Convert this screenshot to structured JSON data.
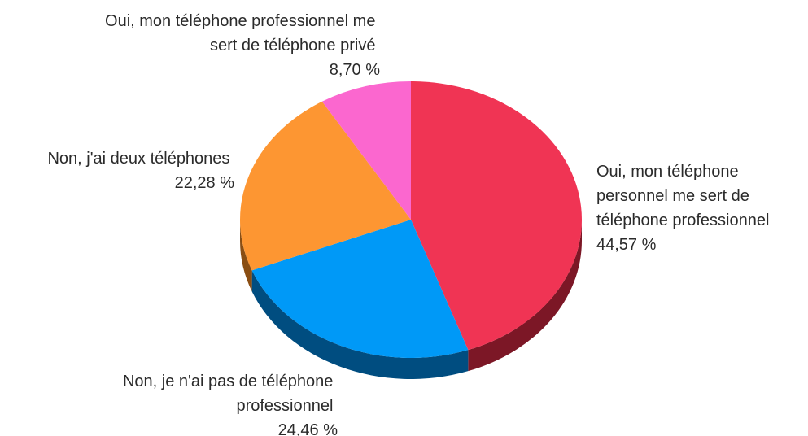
{
  "chart_data": {
    "type": "pie",
    "title": "",
    "slices": [
      {
        "label_lines": [
          "Oui, mon téléphone",
          "personnel me sert de",
          "téléphone professionnel"
        ],
        "value": 44.57,
        "value_label": "44,57 %",
        "color": "#f03454",
        "side_color": "#7c1726"
      },
      {
        "label_lines": [
          "Non, je n'ai pas de téléphone",
          "professionnel"
        ],
        "value": 24.46,
        "value_label": "24,46 %",
        "color": "#0099f7",
        "side_color": "#004d80"
      },
      {
        "label_lines": [
          "Non, j'ai deux téléphones"
        ],
        "value": 22.28,
        "value_label": "22,28 %",
        "color": "#fd9632",
        "side_color": "#8a4e13"
      },
      {
        "label_lines": [
          "Oui, mon téléphone professionnel me",
          "sert de téléphone privé"
        ],
        "value": 8.7,
        "value_label": "8,70 %",
        "color": "#fb67cf",
        "side_color": "#8a2e70"
      }
    ]
  }
}
